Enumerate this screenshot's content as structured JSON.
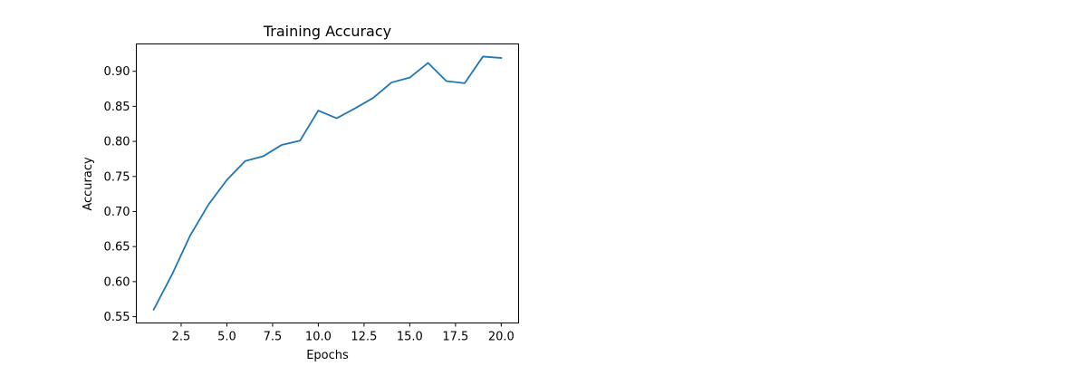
{
  "chart_data": {
    "type": "line",
    "title": "Training Accuracy",
    "xlabel": "Epochs",
    "ylabel": "Accuracy",
    "xlim": [
      0.05,
      20.95
    ],
    "ylim": [
      0.541,
      0.939
    ],
    "x_ticks": [
      2.5,
      5.0,
      7.5,
      10.0,
      12.5,
      15.0,
      17.5,
      20.0
    ],
    "x_tick_labels": [
      "2.5",
      "5.0",
      "7.5",
      "10.0",
      "12.5",
      "15.0",
      "17.5",
      "20.0"
    ],
    "y_ticks": [
      0.55,
      0.6,
      0.65,
      0.7,
      0.75,
      0.8,
      0.85,
      0.9
    ],
    "y_tick_labels": [
      "0.55",
      "0.60",
      "0.65",
      "0.70",
      "0.75",
      "0.80",
      "0.85",
      "0.90"
    ],
    "grid": false,
    "legend": null,
    "series": [
      {
        "color": "#1f77b4",
        "x": [
          1,
          2,
          3,
          4,
          5,
          6,
          7,
          8,
          9,
          10,
          11,
          12,
          13,
          14,
          15,
          16,
          17,
          18,
          19,
          20
        ],
        "values": [
          0.56,
          0.61,
          0.666,
          0.71,
          0.745,
          0.772,
          0.779,
          0.795,
          0.801,
          0.844,
          0.833,
          0.847,
          0.862,
          0.884,
          0.891,
          0.912,
          0.886,
          0.883,
          0.921,
          0.919
        ]
      }
    ]
  }
}
